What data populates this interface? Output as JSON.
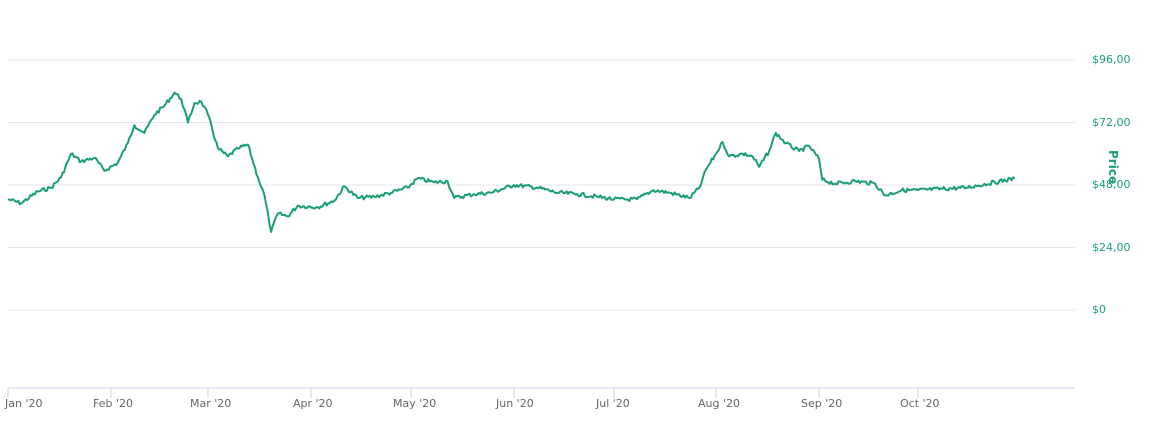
{
  "chart_data": {
    "type": "line",
    "title": "",
    "xlabel": "",
    "ylabel": "Price",
    "ylim": [
      -30,
      110
    ],
    "grid": true,
    "legend": "none",
    "y_ticks": [
      {
        "label": "$96,00",
        "value": 96
      },
      {
        "label": "$72,00",
        "value": 72
      },
      {
        "label": "$48,00",
        "value": 48
      },
      {
        "label": "$24,00",
        "value": 24
      },
      {
        "label": "$0",
        "value": 0
      }
    ],
    "x_ticks": [
      "Jan '20",
      "Feb '20",
      "Mar '20",
      "Apr '20",
      "May '20",
      "Jun '20",
      "Jul '20",
      "Aug '20",
      "Sep '20",
      "Oct '20"
    ],
    "series": [
      {
        "name": "Price",
        "color": "#1a9e74",
        "points": [
          {
            "date": "2020-01-01",
            "value": 42.5
          },
          {
            "date": "2020-01-05",
            "value": 41.0
          },
          {
            "date": "2020-01-10",
            "value": 45.5
          },
          {
            "date": "2020-01-14",
            "value": 47.0
          },
          {
            "date": "2020-01-17",
            "value": 51.0
          },
          {
            "date": "2020-01-20",
            "value": 60.0
          },
          {
            "date": "2020-01-23",
            "value": 57.0
          },
          {
            "date": "2020-01-27",
            "value": 58.5
          },
          {
            "date": "2020-01-30",
            "value": 53.5
          },
          {
            "date": "2020-02-03",
            "value": 56.5
          },
          {
            "date": "2020-02-06",
            "value": 64.0
          },
          {
            "date": "2020-02-08",
            "value": 71.0
          },
          {
            "date": "2020-02-11",
            "value": 68.0
          },
          {
            "date": "2020-02-14",
            "value": 75.0
          },
          {
            "date": "2020-02-17",
            "value": 78.5
          },
          {
            "date": "2020-02-20",
            "value": 83.5
          },
          {
            "date": "2020-02-22",
            "value": 81.0
          },
          {
            "date": "2020-02-24",
            "value": 72.0
          },
          {
            "date": "2020-02-26",
            "value": 79.5
          },
          {
            "date": "2020-02-28",
            "value": 80.0
          },
          {
            "date": "2020-03-01",
            "value": 75.0
          },
          {
            "date": "2020-03-04",
            "value": 62.0
          },
          {
            "date": "2020-03-07",
            "value": 59.0
          },
          {
            "date": "2020-03-10",
            "value": 62.0
          },
          {
            "date": "2020-03-13",
            "value": 63.5
          },
          {
            "date": "2020-03-16",
            "value": 51.0
          },
          {
            "date": "2020-03-18",
            "value": 44.0
          },
          {
            "date": "2020-03-20",
            "value": 30.0
          },
          {
            "date": "2020-03-22",
            "value": 37.0
          },
          {
            "date": "2020-03-25",
            "value": 36.0
          },
          {
            "date": "2020-03-28",
            "value": 40.0
          },
          {
            "date": "2020-04-03",
            "value": 39.5
          },
          {
            "date": "2020-04-08",
            "value": 42.0
          },
          {
            "date": "2020-04-11",
            "value": 47.5
          },
          {
            "date": "2020-04-15",
            "value": 43.0
          },
          {
            "date": "2020-04-20",
            "value": 43.5
          },
          {
            "date": "2020-04-25",
            "value": 45.0
          },
          {
            "date": "2020-04-30",
            "value": 47.0
          },
          {
            "date": "2020-05-03",
            "value": 50.5
          },
          {
            "date": "2020-05-08",
            "value": 49.0
          },
          {
            "date": "2020-05-12",
            "value": 49.5
          },
          {
            "date": "2020-05-14",
            "value": 43.0
          },
          {
            "date": "2020-05-20",
            "value": 44.5
          },
          {
            "date": "2020-05-25",
            "value": 45.0
          },
          {
            "date": "2020-06-01",
            "value": 48.0
          },
          {
            "date": "2020-06-08",
            "value": 47.0
          },
          {
            "date": "2020-06-14",
            "value": 45.0
          },
          {
            "date": "2020-06-20",
            "value": 44.5
          },
          {
            "date": "2020-06-26",
            "value": 43.5
          },
          {
            "date": "2020-07-01",
            "value": 42.5
          },
          {
            "date": "2020-07-08",
            "value": 42.5
          },
          {
            "date": "2020-07-13",
            "value": 46.0
          },
          {
            "date": "2020-07-18",
            "value": 45.0
          },
          {
            "date": "2020-07-24",
            "value": 43.0
          },
          {
            "date": "2020-07-27",
            "value": 47.0
          },
          {
            "date": "2020-07-29",
            "value": 54.0
          },
          {
            "date": "2020-08-01",
            "value": 60.0
          },
          {
            "date": "2020-08-03",
            "value": 64.5
          },
          {
            "date": "2020-08-05",
            "value": 59.0
          },
          {
            "date": "2020-08-09",
            "value": 60.0
          },
          {
            "date": "2020-08-12",
            "value": 59.0
          },
          {
            "date": "2020-08-14",
            "value": 55.0
          },
          {
            "date": "2020-08-17",
            "value": 61.0
          },
          {
            "date": "2020-08-19",
            "value": 68.0
          },
          {
            "date": "2020-08-22",
            "value": 64.0
          },
          {
            "date": "2020-08-26",
            "value": 61.0
          },
          {
            "date": "2020-08-29",
            "value": 63.0
          },
          {
            "date": "2020-09-01",
            "value": 58.0
          },
          {
            "date": "2020-09-02",
            "value": 50.0
          },
          {
            "date": "2020-09-06",
            "value": 48.5
          },
          {
            "date": "2020-09-12",
            "value": 49.5
          },
          {
            "date": "2020-09-18",
            "value": 48.5
          },
          {
            "date": "2020-09-21",
            "value": 44.0
          },
          {
            "date": "2020-09-26",
            "value": 46.0
          },
          {
            "date": "2020-10-01",
            "value": 46.0
          },
          {
            "date": "2020-10-06",
            "value": 47.0
          },
          {
            "date": "2020-10-11",
            "value": 50.5
          }
        ]
      }
    ]
  }
}
